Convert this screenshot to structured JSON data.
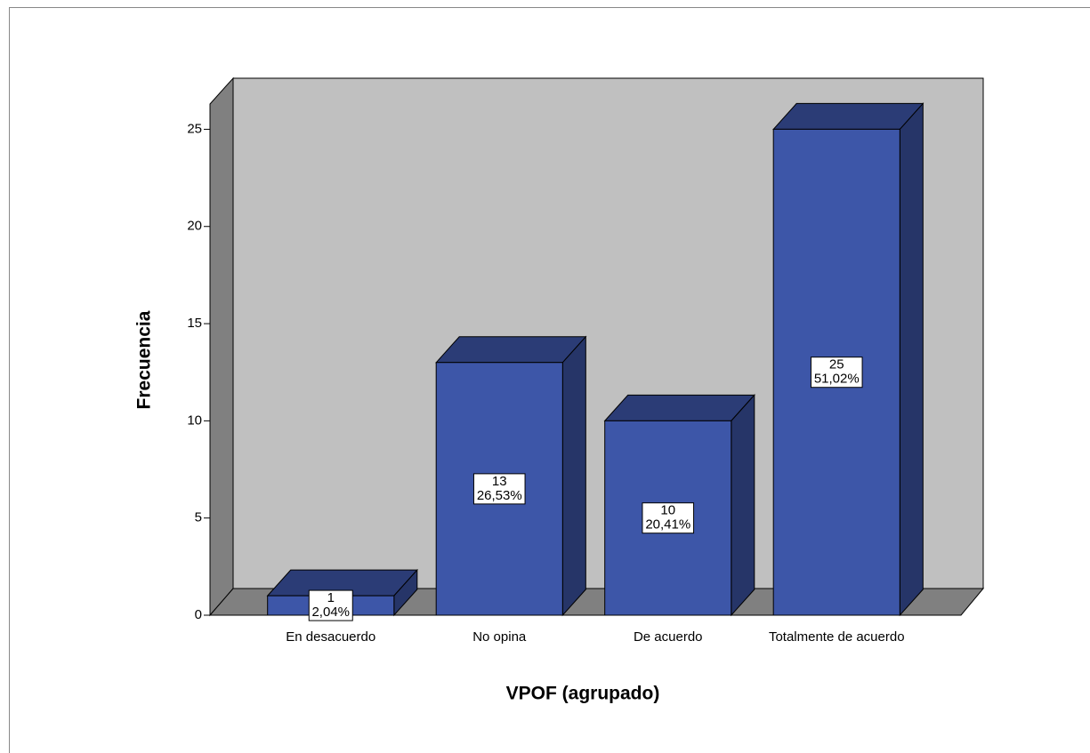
{
  "chart_data": {
    "type": "bar3d",
    "x_label": "VPOF (agrupado)",
    "y_label": "Frecuencia",
    "categories": [
      "En desacuerdo",
      "No opina",
      "De acuerdo",
      "Totalmente de acuerdo"
    ],
    "values": [
      1,
      13,
      10,
      25
    ],
    "percentages": [
      2.04,
      26.53,
      20.41,
      51.02
    ],
    "percentage_labels": [
      "2,04%",
      "26,53%",
      "20,41%",
      "51,02%"
    ],
    "color": "#3d56a8",
    "ylim": [
      0,
      26.3
    ],
    "yticks": [
      0,
      5,
      10,
      15,
      20,
      25
    ],
    "grid": false
  }
}
